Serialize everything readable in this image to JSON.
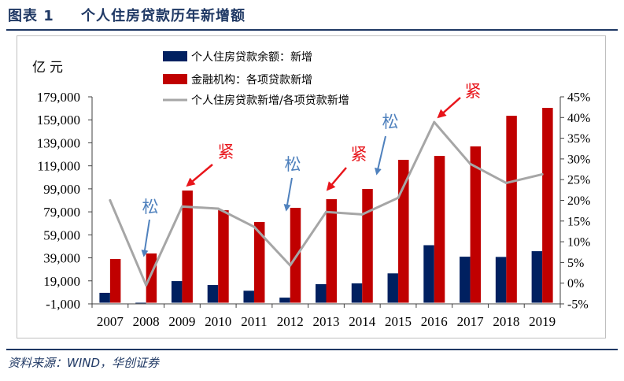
{
  "header": {
    "figure_label": "图表 1",
    "title": "个人住房贷款历年新增额"
  },
  "footer": {
    "source": "资料来源：WIND，华创证券"
  },
  "colors": {
    "heading": "#1F3864",
    "rule": "#1F3864",
    "frame": "#BFBFBF",
    "axis": "#404040",
    "text": "#000000"
  },
  "chart_data": {
    "type": "bar",
    "ylabel": "亿元",
    "categories": [
      "2007",
      "2008",
      "2009",
      "2010",
      "2011",
      "2012",
      "2013",
      "2014",
      "2015",
      "2016",
      "2017",
      "2018",
      "2019"
    ],
    "series": [
      {
        "name": "个人住房贷款余额：新增",
        "type": "bar",
        "axis": "left",
        "color": "#002060",
        "values": [
          8600,
          -300,
          18800,
          15400,
          10400,
          4400,
          16100,
          16800,
          25500,
          50000,
          40000,
          39800,
          44800
        ]
      },
      {
        "name": "金融机构：各项贷款新增",
        "type": "bar",
        "axis": "left",
        "color": "#C00000",
        "values": [
          38000,
          42800,
          97500,
          80400,
          70200,
          82500,
          90000,
          98900,
          124200,
          127600,
          135900,
          162500,
          169400
        ]
      },
      {
        "name": "个人住房贷款新增/各项贷款新增",
        "type": "line",
        "axis": "right",
        "color": "#A6A6A6",
        "values": [
          20.0,
          -0.5,
          18.5,
          18.0,
          13.6,
          4.3,
          17.2,
          16.6,
          20.6,
          38.9,
          28.8,
          24.2,
          26.3
        ]
      }
    ],
    "left_axis": {
      "min": -1000,
      "max": 179000,
      "step": 20000,
      "tick_labels": [
        "179,000",
        "159,000",
        "139,000",
        "119,000",
        "99,000",
        "79,000",
        "59,000",
        "39,000",
        "19,000",
        "-1,000"
      ]
    },
    "right_axis": {
      "min": -5,
      "max": 45,
      "step": 5,
      "tick_labels": [
        "45%",
        "40%",
        "35%",
        "30%",
        "25%",
        "20%",
        "15%",
        "10%",
        "5%",
        "0%",
        "-5%"
      ]
    },
    "grid": false,
    "legend_position": "top",
    "annotations": [
      {
        "text": "松",
        "color": "#4F81BD"
      },
      {
        "text": "紧",
        "color": "#E8151B"
      },
      {
        "text": "松",
        "color": "#4F81BD"
      },
      {
        "text": "紧",
        "color": "#E8151B"
      },
      {
        "text": "松",
        "color": "#4F81BD"
      },
      {
        "text": "紧",
        "color": "#E8151B"
      }
    ]
  }
}
